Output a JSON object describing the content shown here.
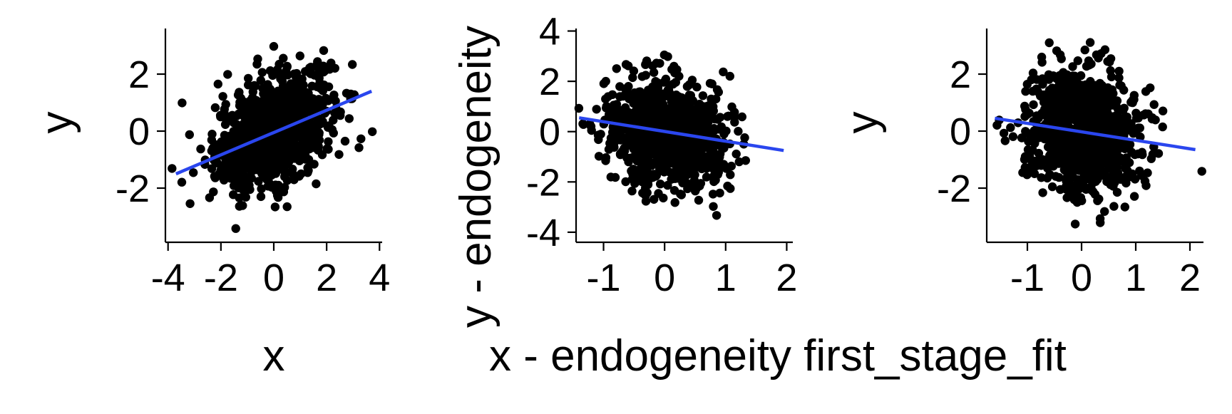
{
  "figure": {
    "layout": "three scatter panels side by side",
    "background": "#ffffff",
    "point_color": "#000000",
    "fit_line_color": "#2a46ee"
  },
  "chart_data": [
    {
      "type": "scatter",
      "xlabel": "x",
      "ylabel": "y",
      "xlim": [
        -4.1,
        4.1
      ],
      "ylim": [
        -3.9,
        3.6
      ],
      "xticks": [
        -4,
        -2,
        0,
        2,
        4
      ],
      "xtick_labels": [
        "-4",
        "-2",
        "0",
        "2",
        "4"
      ],
      "yticks": [
        -2,
        0,
        2
      ],
      "ytick_labels": [
        "-2",
        "0",
        "2"
      ],
      "grid": false,
      "legend": "none",
      "n_points_approx": 1000,
      "cloud": {
        "x_center": 0,
        "x_sd": 1.1,
        "y_center": 0,
        "y_sd": 1.05,
        "correlation": 0.45
      },
      "fit_line": {
        "x": [
          -3.7,
          3.7
        ],
        "y": [
          -1.5,
          1.4
        ]
      }
    },
    {
      "type": "scatter",
      "xlabel": "x - endogeneity first_stage_fit",
      "ylabel": "y - endogeneity",
      "xlim": [
        -1.45,
        2.1
      ],
      "ylim": [
        -4.4,
        4.1
      ],
      "xticks": [
        -1,
        0,
        1,
        2
      ],
      "xtick_labels": [
        "-1",
        "0",
        "1",
        "2"
      ],
      "yticks": [
        -4,
        -2,
        0,
        2,
        4
      ],
      "ytick_labels": [
        "-4",
        "-2",
        "0",
        "2",
        "4"
      ],
      "grid": false,
      "legend": "none",
      "n_points_approx": 1000,
      "cloud": {
        "x_center": 0,
        "x_sd": 0.48,
        "y_center": 0,
        "y_sd": 1.05,
        "correlation": -0.18
      },
      "fit_line": {
        "x": [
          -1.4,
          1.95
        ],
        "y": [
          0.55,
          -0.75
        ]
      }
    },
    {
      "type": "scatter",
      "xlabel": "",
      "ylabel": "y",
      "xlim": [
        -1.75,
        2.25
      ],
      "ylim": [
        -3.9,
        3.6
      ],
      "xticks": [
        -1,
        0,
        1,
        2
      ],
      "xtick_labels": [
        "-1",
        "0",
        "1",
        "2"
      ],
      "yticks": [
        -2,
        0,
        2
      ],
      "ytick_labels": [
        "-2",
        "0",
        "2"
      ],
      "grid": false,
      "legend": "none",
      "n_points_approx": 1000,
      "cloud": {
        "x_center": 0,
        "x_sd": 0.5,
        "y_center": 0,
        "y_sd": 1.1,
        "correlation": -0.15
      },
      "fit_line": {
        "x": [
          -1.6,
          2.1
        ],
        "y": [
          0.45,
          -0.65
        ]
      }
    }
  ]
}
